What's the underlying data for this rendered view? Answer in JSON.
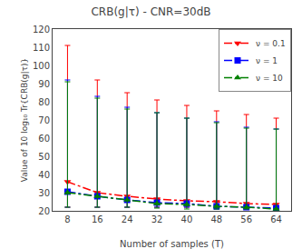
{
  "chart_data": {
    "type": "line",
    "title": "CRB(g|τ) - CNR=30dB",
    "xlabel": "Number of samples (T)",
    "ylabel": "Value of 10 log₁₀ Tr{CRB(g|τ)}",
    "x": [
      8,
      16,
      24,
      32,
      40,
      48,
      56,
      64
    ],
    "series": [
      {
        "name": "ν = 0.1",
        "color": "red",
        "line_style": "dashdot",
        "marker": "triangle-down",
        "values": [
          36,
          30,
          28,
          26.5,
          25.5,
          25,
          24,
          23.5
        ],
        "upper": [
          111,
          92,
          85,
          81,
          78,
          75,
          73,
          71
        ],
        "lower": [
          22,
          22,
          22,
          22,
          22,
          22,
          22,
          22
        ]
      },
      {
        "name": "ν = 1",
        "color": "blue",
        "line_style": "dashdot",
        "marker": "square",
        "values": [
          30.5,
          28,
          26,
          24.5,
          24,
          22.5,
          22,
          21.5
        ],
        "upper": [
          92,
          83,
          77,
          74,
          71,
          69,
          66,
          65
        ],
        "lower": [
          22,
          22,
          22,
          22,
          22,
          21,
          21,
          21
        ]
      },
      {
        "name": "ν = 10",
        "color": "green",
        "line_style": "dashdot",
        "marker": "triangle-up",
        "values": [
          30,
          28,
          26,
          24,
          23.5,
          22.5,
          22,
          21
        ],
        "upper": [
          91,
          82,
          76,
          74,
          71,
          68.5,
          65.5,
          65
        ],
        "lower": [
          22,
          22,
          22,
          21.5,
          21,
          21,
          21,
          21
        ]
      }
    ],
    "xlim": [
      4,
      68
    ],
    "ylim": [
      20,
      120
    ],
    "xticks": [
      8,
      16,
      24,
      32,
      40,
      48,
      56,
      64
    ],
    "yticks": [
      20,
      30,
      40,
      50,
      60,
      70,
      80,
      90,
      100,
      110,
      120
    ],
    "legend": "upper right",
    "grid": false
  }
}
